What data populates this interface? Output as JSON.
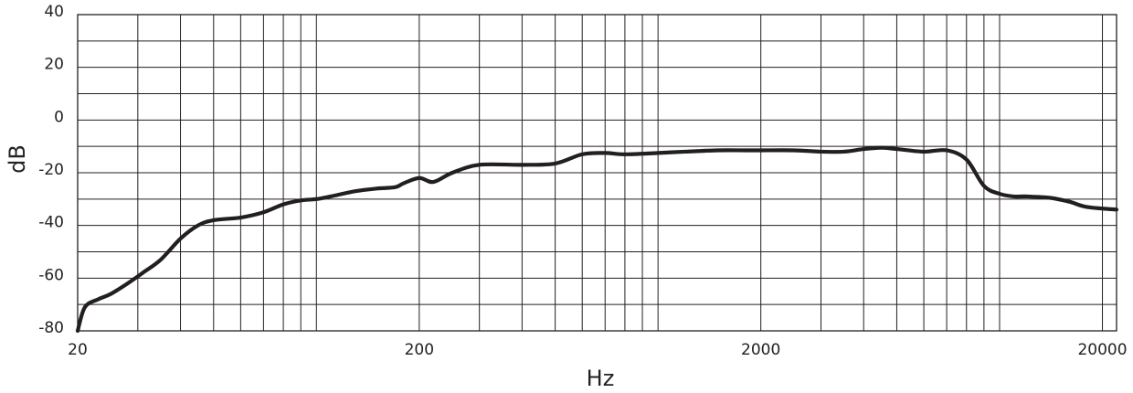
{
  "chart_data": {
    "type": "line",
    "title": "",
    "xlabel": "Hz",
    "ylabel": "dB",
    "x_scale": "log",
    "xlim": [
      20,
      22000
    ],
    "ylim": [
      -80,
      40
    ],
    "grid": true,
    "x_ticks": [
      20,
      200,
      2000,
      20000
    ],
    "x_tick_labels": [
      "20",
      "200",
      "2000",
      "20000"
    ],
    "y_ticks": [
      40,
      20,
      0,
      -20,
      -40,
      -60,
      -80
    ],
    "y_tick_labels": [
      "40",
      "20",
      "0",
      "-20",
      "-40",
      "-60",
      "-80"
    ],
    "line_color": "#231f20",
    "series": [
      {
        "x": [
          20,
          21,
          23,
          25,
          28,
          31,
          35,
          40,
          45,
          50,
          60,
          70,
          80,
          90,
          100,
          110,
          130,
          150,
          170,
          180,
          200,
          220,
          250,
          300,
          400,
          500,
          600,
          700,
          800,
          1000,
          1200,
          1500,
          1800,
          2000,
          2500,
          3000,
          3500,
          4000,
          4500,
          5000,
          6000,
          7000,
          8000,
          9000,
          10000,
          11000,
          12000,
          14000,
          16000,
          18000,
          22000
        ],
        "y": [
          -80,
          -71,
          -68,
          -66,
          -62,
          -58,
          -53,
          -45,
          -40,
          -38,
          -37,
          -35,
          -32,
          -30.5,
          -30,
          -29,
          -27,
          -26,
          -25.5,
          -24,
          -22,
          -23.5,
          -20,
          -17,
          -17,
          -16.5,
          -13,
          -12.5,
          -13,
          -12.5,
          -12,
          -11.5,
          -11.5,
          -11.5,
          -11.5,
          -12,
          -12,
          -11,
          -10.5,
          -11,
          -12,
          -11.5,
          -15,
          -25,
          -28,
          -29,
          -29,
          -29.5,
          -31,
          -33,
          -34
        ]
      }
    ]
  }
}
